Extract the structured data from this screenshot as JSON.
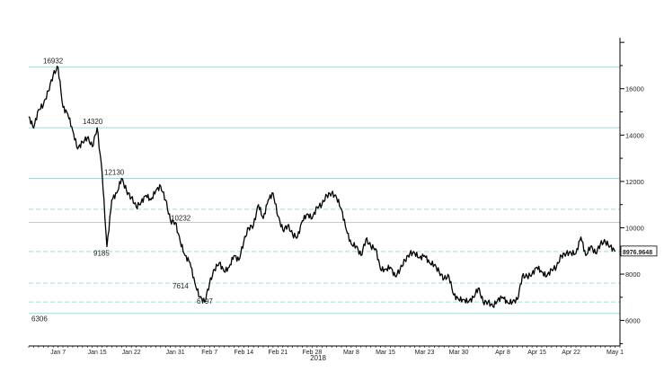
{
  "chart_data": {
    "type": "line",
    "title": "",
    "xlabel": "2018",
    "ylabel": "",
    "x_ticks": [
      "Jan 7",
      "Jan 15",
      "Jan 22",
      "Jan 31",
      "Feb 7",
      "Feb 14",
      "Feb 21",
      "Feb 28",
      "Mar 8",
      "Mar 15",
      "Mar 23",
      "Mar 30",
      "Apr 8",
      "Apr 15",
      "Apr 22",
      "May 1"
    ],
    "y_ticks": [
      6000,
      8000,
      10000,
      12000,
      14000,
      16000
    ],
    "ylim": [
      4900,
      18200
    ],
    "last_value_label": "8976.9648",
    "horizontal_levels": [
      {
        "value": 16932,
        "style": "solid",
        "label": "16932"
      },
      {
        "value": 14320,
        "style": "solid",
        "label": "14320"
      },
      {
        "value": 12130,
        "style": "solid",
        "label": "12130"
      },
      {
        "value": 10800,
        "style": "dashed",
        "label": ""
      },
      {
        "value": 10232,
        "style": "solid",
        "label": "10232"
      },
      {
        "value": 8976.9648,
        "style": "dashed",
        "label": ""
      },
      {
        "value": 7614,
        "style": "dashed",
        "label": "7614"
      },
      {
        "value": 6797,
        "style": "dashed",
        "label": "6797"
      },
      {
        "value": 6306,
        "style": "solid",
        "label": "6306"
      }
    ],
    "annotations": [
      {
        "text": "16932",
        "date": "Jan 7"
      },
      {
        "text": "14320",
        "date": "Jan 15"
      },
      {
        "text": "12130",
        "date": "Jan 22"
      },
      {
        "text": "9185",
        "date": "Jan 16"
      },
      {
        "text": "10232",
        "date": "Jan 31"
      },
      {
        "text": "7614",
        "date": "Feb 5"
      },
      {
        "text": "6797",
        "date": "Feb 6"
      },
      {
        "text": "6306",
        "date": "Jan 1"
      }
    ],
    "series": [
      {
        "points": [
          [
            "Jan 1",
            14800
          ],
          [
            "Jan 2",
            14300
          ],
          [
            "Jan 3",
            15100
          ],
          [
            "Jan 4",
            15300
          ],
          [
            "Jan 5",
            15900
          ],
          [
            "Jan 6",
            16600
          ],
          [
            "Jan 7",
            16932
          ],
          [
            "Jan 8",
            15200
          ],
          [
            "Jan 9",
            14900
          ],
          [
            "Jan 10",
            14200
          ],
          [
            "Jan 11",
            13400
          ],
          [
            "Jan 12",
            13700
          ],
          [
            "Jan 13",
            13900
          ],
          [
            "Jan 14",
            13500
          ],
          [
            "Jan 15",
            14320
          ],
          [
            "Jan 16",
            12400
          ],
          [
            "Jan 17",
            9185
          ],
          [
            "Jan 18",
            11200
          ],
          [
            "Jan 19",
            11500
          ],
          [
            "Jan 20",
            12130
          ],
          [
            "Jan 21",
            11600
          ],
          [
            "Jan 22",
            11300
          ],
          [
            "Jan 23",
            10900
          ],
          [
            "Jan 24",
            11100
          ],
          [
            "Jan 25",
            11400
          ],
          [
            "Jan 26",
            11200
          ],
          [
            "Jan 27",
            11600
          ],
          [
            "Jan 28",
            11800
          ],
          [
            "Jan 29",
            11200
          ],
          [
            "Jan 30",
            10300
          ],
          [
            "Jan 31",
            10232
          ],
          [
            "Feb 1",
            9400
          ],
          [
            "Feb 2",
            8800
          ],
          [
            "Feb 3",
            8500
          ],
          [
            "Feb 4",
            7614
          ],
          [
            "Feb 5",
            7000
          ],
          [
            "Feb 6",
            6797
          ],
          [
            "Feb 7",
            7600
          ],
          [
            "Feb 8",
            8200
          ],
          [
            "Feb 9",
            8500
          ],
          [
            "Feb 10",
            8100
          ],
          [
            "Feb 11",
            8300
          ],
          [
            "Feb 12",
            8800
          ],
          [
            "Feb 13",
            8600
          ],
          [
            "Feb 14",
            9400
          ],
          [
            "Feb 15",
            10000
          ],
          [
            "Feb 16",
            10100
          ],
          [
            "Feb 17",
            11000
          ],
          [
            "Feb 18",
            10400
          ],
          [
            "Feb 19",
            11200
          ],
          [
            "Feb 20",
            11500
          ],
          [
            "Feb 21",
            10500
          ],
          [
            "Feb 22",
            9900
          ],
          [
            "Feb 23",
            10100
          ],
          [
            "Feb 24",
            9700
          ],
          [
            "Feb 25",
            9600
          ],
          [
            "Feb 26",
            10300
          ],
          [
            "Feb 27",
            10600
          ],
          [
            "Feb 28",
            10400
          ],
          [
            "Mar 1",
            10900
          ],
          [
            "Mar 2",
            11000
          ],
          [
            "Mar 3",
            11400
          ],
          [
            "Mar 4",
            11500
          ],
          [
            "Mar 5",
            11300
          ],
          [
            "Mar 6",
            10800
          ],
          [
            "Mar 7",
            9900
          ],
          [
            "Mar 8",
            9300
          ],
          [
            "Mar 9",
            9200
          ],
          [
            "Mar 10",
            8800
          ],
          [
            "Mar 11",
            9500
          ],
          [
            "Mar 12",
            9200
          ],
          [
            "Mar 13",
            9100
          ],
          [
            "Mar 14",
            8200
          ],
          [
            "Mar 15",
            8200
          ],
          [
            "Mar 16",
            8300
          ],
          [
            "Mar 17",
            7900
          ],
          [
            "Mar 18",
            8200
          ],
          [
            "Mar 19",
            8600
          ],
          [
            "Mar 20",
            8900
          ],
          [
            "Mar 21",
            8900
          ],
          [
            "Mar 22",
            8700
          ],
          [
            "Mar 23",
            8800
          ],
          [
            "Mar 24",
            8500
          ],
          [
            "Mar 25",
            8400
          ],
          [
            "Mar 26",
            8100
          ],
          [
            "Mar 27",
            7800
          ],
          [
            "Mar 28",
            7900
          ],
          [
            "Mar 29",
            7100
          ],
          [
            "Mar 30",
            6900
          ],
          [
            "Mar 31",
            6900
          ],
          [
            "Apr 1",
            6800
          ],
          [
            "Apr 2",
            7000
          ],
          [
            "Apr 3",
            7400
          ],
          [
            "Apr 4",
            6800
          ],
          [
            "Apr 5",
            6800
          ],
          [
            "Apr 6",
            6600
          ],
          [
            "Apr 7",
            6900
          ],
          [
            "Apr 8",
            7000
          ],
          [
            "Apr 9",
            6770
          ],
          [
            "Apr 10",
            6800
          ],
          [
            "Apr 11",
            6900
          ],
          [
            "Apr 12",
            7900
          ],
          [
            "Apr 13",
            7900
          ],
          [
            "Apr 14",
            8000
          ],
          [
            "Apr 15",
            8300
          ],
          [
            "Apr 16",
            8100
          ],
          [
            "Apr 17",
            7900
          ],
          [
            "Apr 18",
            8200
          ],
          [
            "Apr 19",
            8300
          ],
          [
            "Apr 20",
            8800
          ],
          [
            "Apr 21",
            8900
          ],
          [
            "Apr 22",
            8900
          ],
          [
            "Apr 23",
            8900
          ],
          [
            "Apr 24",
            9600
          ],
          [
            "Apr 25",
            8800
          ],
          [
            "Apr 26",
            9200
          ],
          [
            "Apr 27",
            8900
          ],
          [
            "Apr 28",
            9300
          ],
          [
            "Apr 29",
            9400
          ],
          [
            "Apr 30",
            9200
          ],
          [
            "May 1",
            8976.9648
          ]
        ]
      }
    ],
    "colors": {
      "line": "#000000",
      "level": "#a8d8d4",
      "axis": "#000000"
    }
  }
}
